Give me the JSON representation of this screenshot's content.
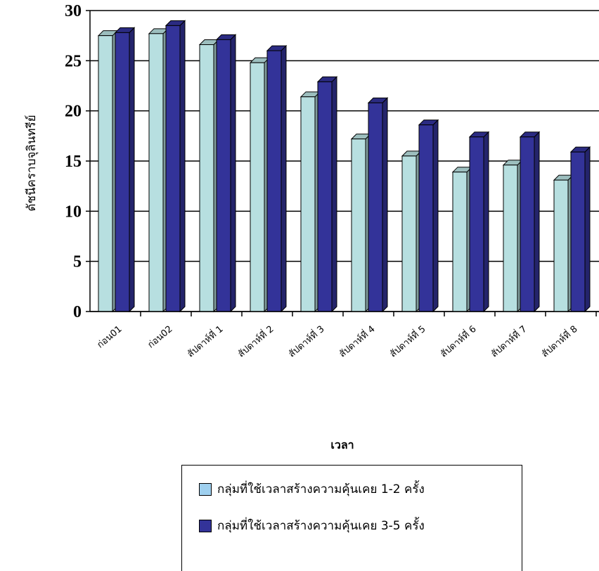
{
  "chart_data": {
    "type": "bar",
    "title": "",
    "xlabel": "เวลา",
    "ylabel": "ดัชนีคราบจุลินทรีย์",
    "ylim": [
      0,
      30
    ],
    "yticks": [
      0,
      5,
      10,
      15,
      20,
      25,
      30
    ],
    "categories": [
      "ก่อน01",
      "ก่อน02",
      "สัปดาห์ที่ 1",
      "สัปดาห์ที่ 2",
      "สัปดาห์ที่ 3",
      "สัปดาห์ที่ 4",
      "สัปดาห์ที่ 5",
      "สัปดาห์ที่ 6",
      "สัปดาห์ที่ 7",
      "สัปดาห์ที่ 8"
    ],
    "series": [
      {
        "name": "กลุ่มที่ใช้เวลาสร้างความคุ้นเคย 1-2 ครั้ง",
        "color": "#b7dfe0",
        "values": [
          27.5,
          27.7,
          26.6,
          24.8,
          21.4,
          17.2,
          15.5,
          13.9,
          14.6,
          13.1
        ]
      },
      {
        "name": "กลุ่มที่ใช้เวลาสร้างความคุ้นเคย 3-5 ครั้ง",
        "color": "#333399",
        "values": [
          27.8,
          28.5,
          27.1,
          26.0,
          22.9,
          20.8,
          18.6,
          17.4,
          17.4,
          15.9
        ]
      }
    ],
    "grid": true,
    "legend_position": "bottom"
  }
}
